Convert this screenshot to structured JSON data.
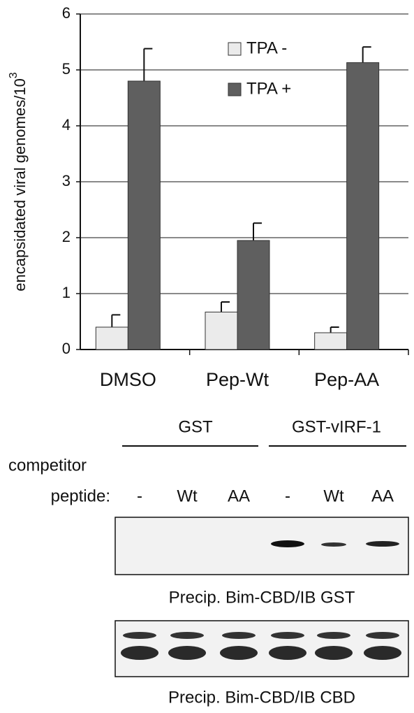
{
  "chart_data": {
    "type": "bar",
    "y_label": "encapsidated viral genomes/10",
    "y_label_superscript": "3",
    "categories": [
      "DMSO",
      "Pep-Wt",
      "Pep-AA"
    ],
    "series": [
      {
        "name": "TPA -",
        "color": "#ebebeb",
        "values": [
          0.4,
          0.67,
          0.3
        ],
        "errors": [
          0.22,
          0.18,
          0.1
        ]
      },
      {
        "name": "TPA +",
        "color": "#5f5f5f",
        "values": [
          4.8,
          1.95,
          5.13
        ],
        "errors": [
          0.58,
          0.31,
          0.28
        ]
      }
    ],
    "ylim": [
      0,
      6
    ],
    "yticks": [
      0,
      1,
      2,
      3,
      4,
      5,
      6
    ],
    "grid": true,
    "legend": "top"
  },
  "blot": {
    "groups": [
      "GST",
      "GST-vIRF-1"
    ],
    "row_label": [
      "competitor",
      "peptide:"
    ],
    "lanes": [
      "-",
      "Wt",
      "AA",
      "-",
      "Wt",
      "AA"
    ],
    "captions": [
      "Precip. Bim-CBD/IB GST",
      "Precip. Bim-CBD/IB CBD"
    ]
  }
}
